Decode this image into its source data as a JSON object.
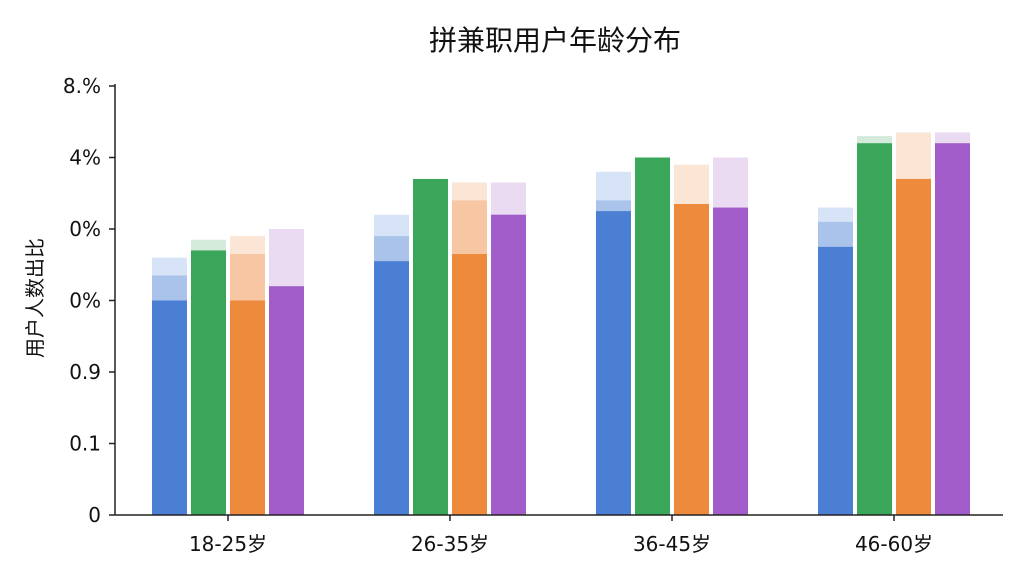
{
  "chart_data": {
    "type": "bar",
    "title": "拼兼职用户年龄分布",
    "xlabel": "",
    "ylabel": "用户人数出比",
    "categories": [
      "18-25岁",
      "26-35岁",
      "36-45岁",
      "46-60岁"
    ],
    "y_tick_labels": [
      "0",
      "0.1",
      "0.9",
      "0%",
      "0%",
      "4%",
      "8.%"
    ],
    "ylim": [
      0,
      6
    ],
    "grid": false,
    "legend": "none",
    "series": [
      {
        "color": "#4a7fd4",
        "values": [
          3.0,
          3.55,
          4.25,
          3.75
        ],
        "overlay_values": [
          [
            3.35,
            3.6
          ],
          [
            3.9,
            4.2
          ],
          [
            4.4,
            4.8
          ],
          [
            4.1,
            4.3
          ]
        ]
      },
      {
        "color": "#3aa65a",
        "values": [
          3.7,
          4.7,
          5.0,
          5.2
        ],
        "overlay_values": [
          [
            3.85
          ],
          [],
          [],
          [
            5.3
          ]
        ]
      },
      {
        "color": "#ee8a3c",
        "values": [
          3.0,
          3.65,
          4.35,
          4.7
        ],
        "overlay_values": [
          [
            3.65,
            3.9
          ],
          [
            4.4,
            4.65
          ],
          [
            4.9
          ],
          [
            5.35
          ]
        ]
      },
      {
        "color": "#a15cc9",
        "values": [
          3.2,
          4.2,
          4.3,
          5.2
        ],
        "overlay_values": [
          [
            4.0
          ],
          [
            4.65
          ],
          [
            5.0
          ],
          [
            5.35
          ]
        ]
      }
    ]
  }
}
